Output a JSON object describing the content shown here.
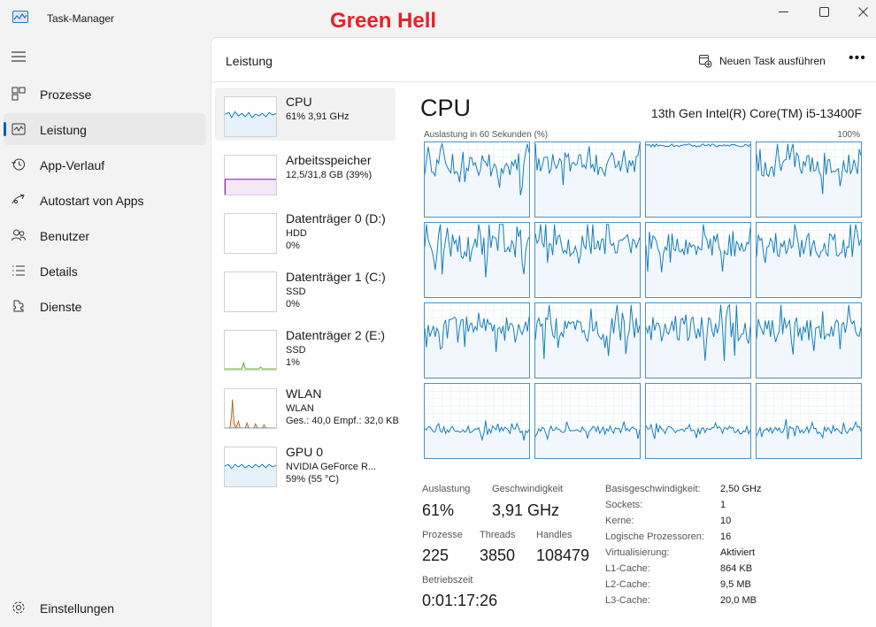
{
  "window": {
    "title": "Task-Manager",
    "overlay_text": "Green Hell"
  },
  "nav": {
    "items": [
      {
        "label": "Prozesse",
        "icon": "processes-icon"
      },
      {
        "label": "Leistung",
        "icon": "performance-icon",
        "active": true
      },
      {
        "label": "App-Verlauf",
        "icon": "history-icon"
      },
      {
        "label": "Autostart von Apps",
        "icon": "startup-icon"
      },
      {
        "label": "Benutzer",
        "icon": "users-icon"
      },
      {
        "label": "Details",
        "icon": "details-icon"
      },
      {
        "label": "Dienste",
        "icon": "services-icon"
      }
    ],
    "settings_label": "Einstellungen"
  },
  "header": {
    "title": "Leistung",
    "run_task_label": "Neuen Task ausführen",
    "more_label": "•••"
  },
  "resources": [
    {
      "name": "CPU",
      "line1": "61%  3,91 GHz",
      "line2": "",
      "color": "#117dbb"
    },
    {
      "name": "Arbeitsspeicher",
      "line1": "12,5/31,8 GB (39%)",
      "line2": "",
      "color": "#8b12ae"
    },
    {
      "name": "Datenträger 0 (D:)",
      "line1": "HDD",
      "line2": "0%",
      "color": "#4da60c"
    },
    {
      "name": "Datenträger 1 (C:)",
      "line1": "SSD",
      "line2": "0%",
      "color": "#4da60c"
    },
    {
      "name": "Datenträger 2 (E:)",
      "line1": "SSD",
      "line2": "1%",
      "color": "#4da60c"
    },
    {
      "name": "WLAN",
      "line1": "WLAN",
      "line2": "Ges.: 40,0 Empf.: 32,0 KB",
      "color": "#a74f01"
    },
    {
      "name": "GPU 0",
      "line1": "NVIDIA GeForce R...",
      "line2": "59%  (55 °C)",
      "color": "#117dbb"
    }
  ],
  "cpu": {
    "title": "CPU",
    "model": "13th Gen Intel(R) Core(TM) i5-13400F",
    "util_label": "Auslastung in 60 Sekunden (%)",
    "util_max": "100%",
    "line_color": "#117dbb",
    "stats": {
      "util_label": "Auslastung",
      "util_value": "61%",
      "speed_label": "Geschwindigkeit",
      "speed_value": "3,91 GHz",
      "proc_label": "Prozesse",
      "proc_value": "225",
      "threads_label": "Threads",
      "threads_value": "3850",
      "handles_label": "Handles",
      "handles_value": "108479",
      "uptime_label": "Betriebszeit",
      "uptime_value": "0:01:17:26"
    },
    "specs": [
      {
        "key": "Basisgeschwindigkeit:",
        "value": "2,50 GHz"
      },
      {
        "key": "Sockets:",
        "value": "1"
      },
      {
        "key": "Kerne:",
        "value": "10"
      },
      {
        "key": "Logische Prozessoren:",
        "value": "16"
      },
      {
        "key": "Virtualisierung:",
        "value": "Aktiviert"
      },
      {
        "key": "L1-Cache:",
        "value": "864 KB"
      },
      {
        "key": "L2-Cache:",
        "value": "9,5 MB"
      },
      {
        "key": "L3-Cache:",
        "value": "20,0 MB"
      }
    ]
  }
}
